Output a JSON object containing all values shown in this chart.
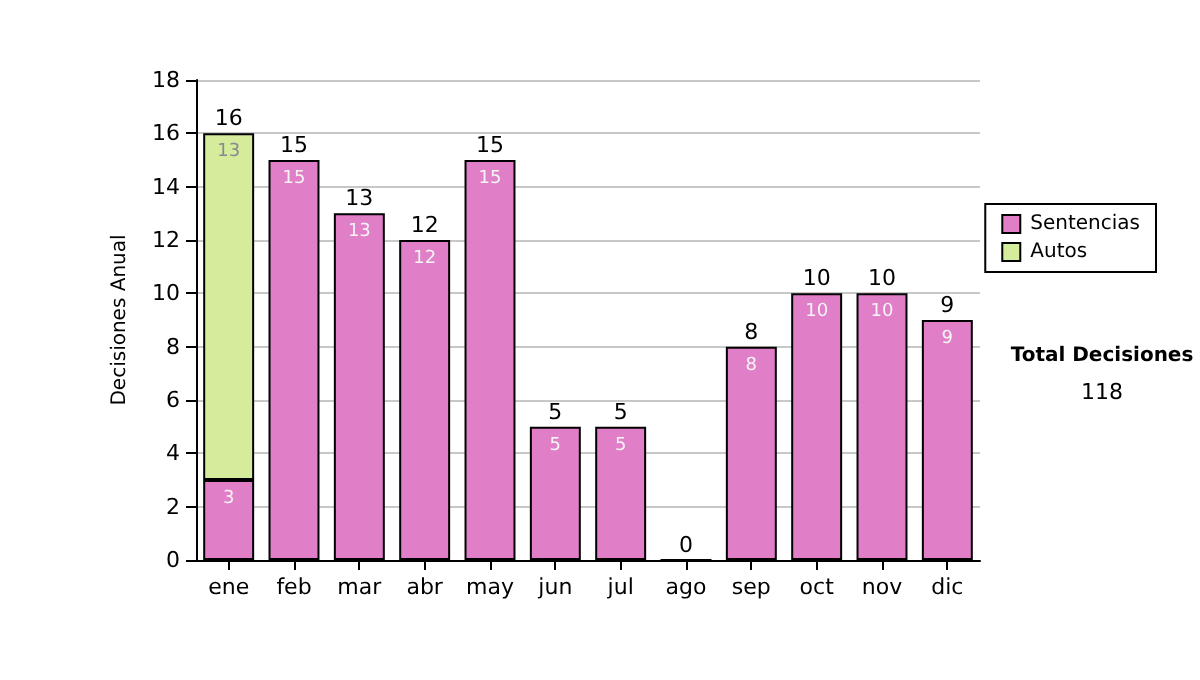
{
  "chart_data": {
    "type": "bar",
    "stacked": true,
    "ylabel": "Decisiones Anual",
    "categories": [
      "ene",
      "feb",
      "mar",
      "abr",
      "may",
      "jun",
      "jul",
      "ago",
      "sep",
      "oct",
      "nov",
      "dic"
    ],
    "series": [
      {
        "name": "Sentencias",
        "color": "#e07ec8",
        "values": [
          3,
          15,
          13,
          12,
          15,
          5,
          5,
          0,
          8,
          10,
          10,
          9
        ],
        "value_labels": [
          "3",
          "15",
          "13",
          "12",
          "15",
          "5",
          "5",
          null,
          "8",
          "10",
          "10",
          "9"
        ]
      },
      {
        "name": "Autos",
        "color": "#d4ec9c",
        "values": [
          13,
          null,
          null,
          null,
          null,
          null,
          null,
          null,
          null,
          null,
          null,
          null
        ],
        "value_labels": [
          "13",
          null,
          null,
          null,
          null,
          null,
          null,
          null,
          null,
          null,
          null,
          null
        ]
      }
    ],
    "totals": [
      "16",
      "15",
      "13",
      "12",
      "15",
      "5",
      "5",
      "0",
      "8",
      "10",
      "10",
      "9"
    ],
    "ylim": [
      0,
      18
    ],
    "yticks": [
      0,
      2,
      4,
      6,
      8,
      10,
      12,
      14,
      16,
      18
    ],
    "grid": "y",
    "legend": "right",
    "annotations": [
      "Total Decisiones",
      "118"
    ]
  }
}
